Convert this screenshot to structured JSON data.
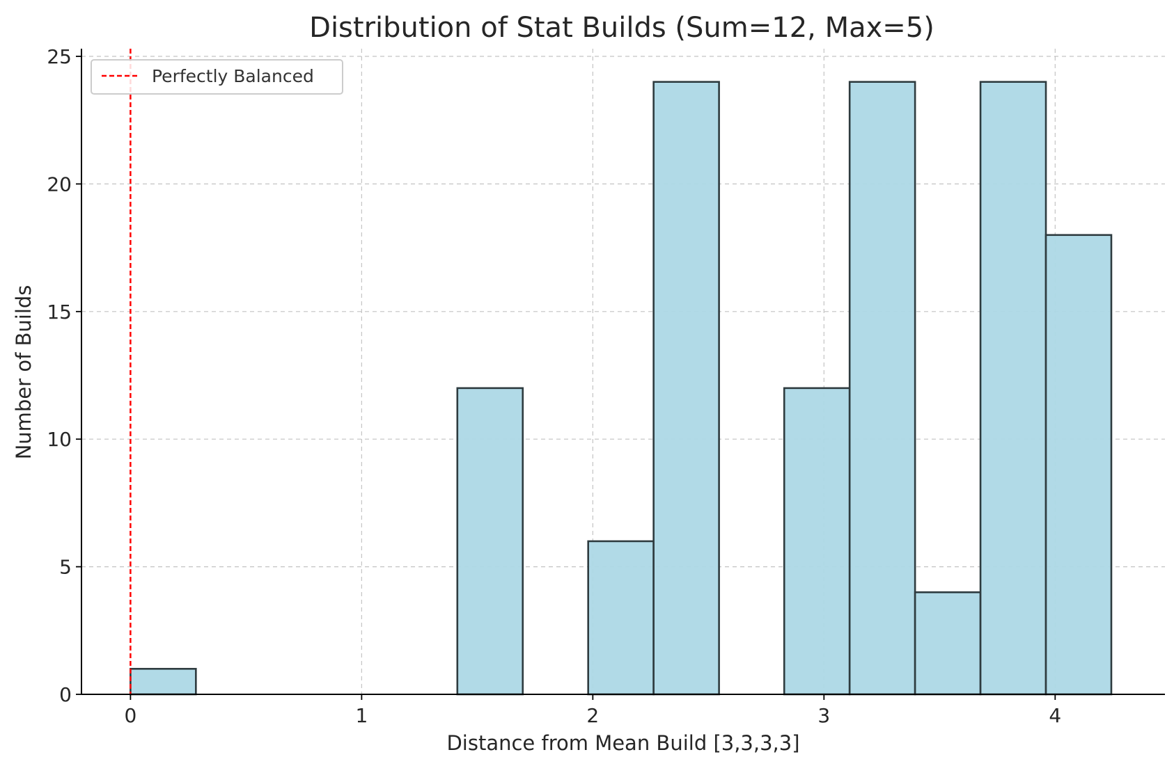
{
  "chart_data": {
    "type": "bar",
    "title": "Distribution of Stat Builds (Sum=12, Max=5)",
    "xlabel": "Distance from Mean Build [3,3,3,3]",
    "ylabel": "Number of Builds",
    "xlim": [
      -0.212,
      4.475
    ],
    "ylim": [
      0,
      25.3
    ],
    "xticks": [
      "0",
      "1",
      "2",
      "3",
      "4"
    ],
    "yticks": [
      "0",
      "5",
      "10",
      "15",
      "20",
      "25"
    ],
    "grid": true,
    "bins": [
      {
        "start": 0.0,
        "end": 0.283,
        "count": 1
      },
      {
        "start": 0.283,
        "end": 0.566,
        "count": 0
      },
      {
        "start": 0.566,
        "end": 0.849,
        "count": 0
      },
      {
        "start": 0.849,
        "end": 1.131,
        "count": 0
      },
      {
        "start": 1.131,
        "end": 1.414,
        "count": 0
      },
      {
        "start": 1.414,
        "end": 1.697,
        "count": 12
      },
      {
        "start": 1.697,
        "end": 1.98,
        "count": 0
      },
      {
        "start": 1.98,
        "end": 2.263,
        "count": 6
      },
      {
        "start": 2.263,
        "end": 2.546,
        "count": 24
      },
      {
        "start": 2.546,
        "end": 2.828,
        "count": 0
      },
      {
        "start": 2.828,
        "end": 3.111,
        "count": 12
      },
      {
        "start": 3.111,
        "end": 3.394,
        "count": 24
      },
      {
        "start": 3.394,
        "end": 3.677,
        "count": 4
      },
      {
        "start": 3.677,
        "end": 3.96,
        "count": 24
      },
      {
        "start": 3.96,
        "end": 4.243,
        "count": 18
      }
    ],
    "reference_line": {
      "x": 0,
      "label": "Perfectly Balanced",
      "color": "#ff0000",
      "style": "dashed"
    },
    "legend": {
      "placement": "upper-left",
      "entries": [
        "Perfectly Balanced"
      ]
    },
    "colors": {
      "bar_fill": "#add8e6",
      "bar_edge": "#2e3b3f",
      "reference_line": "#ff0000"
    }
  }
}
